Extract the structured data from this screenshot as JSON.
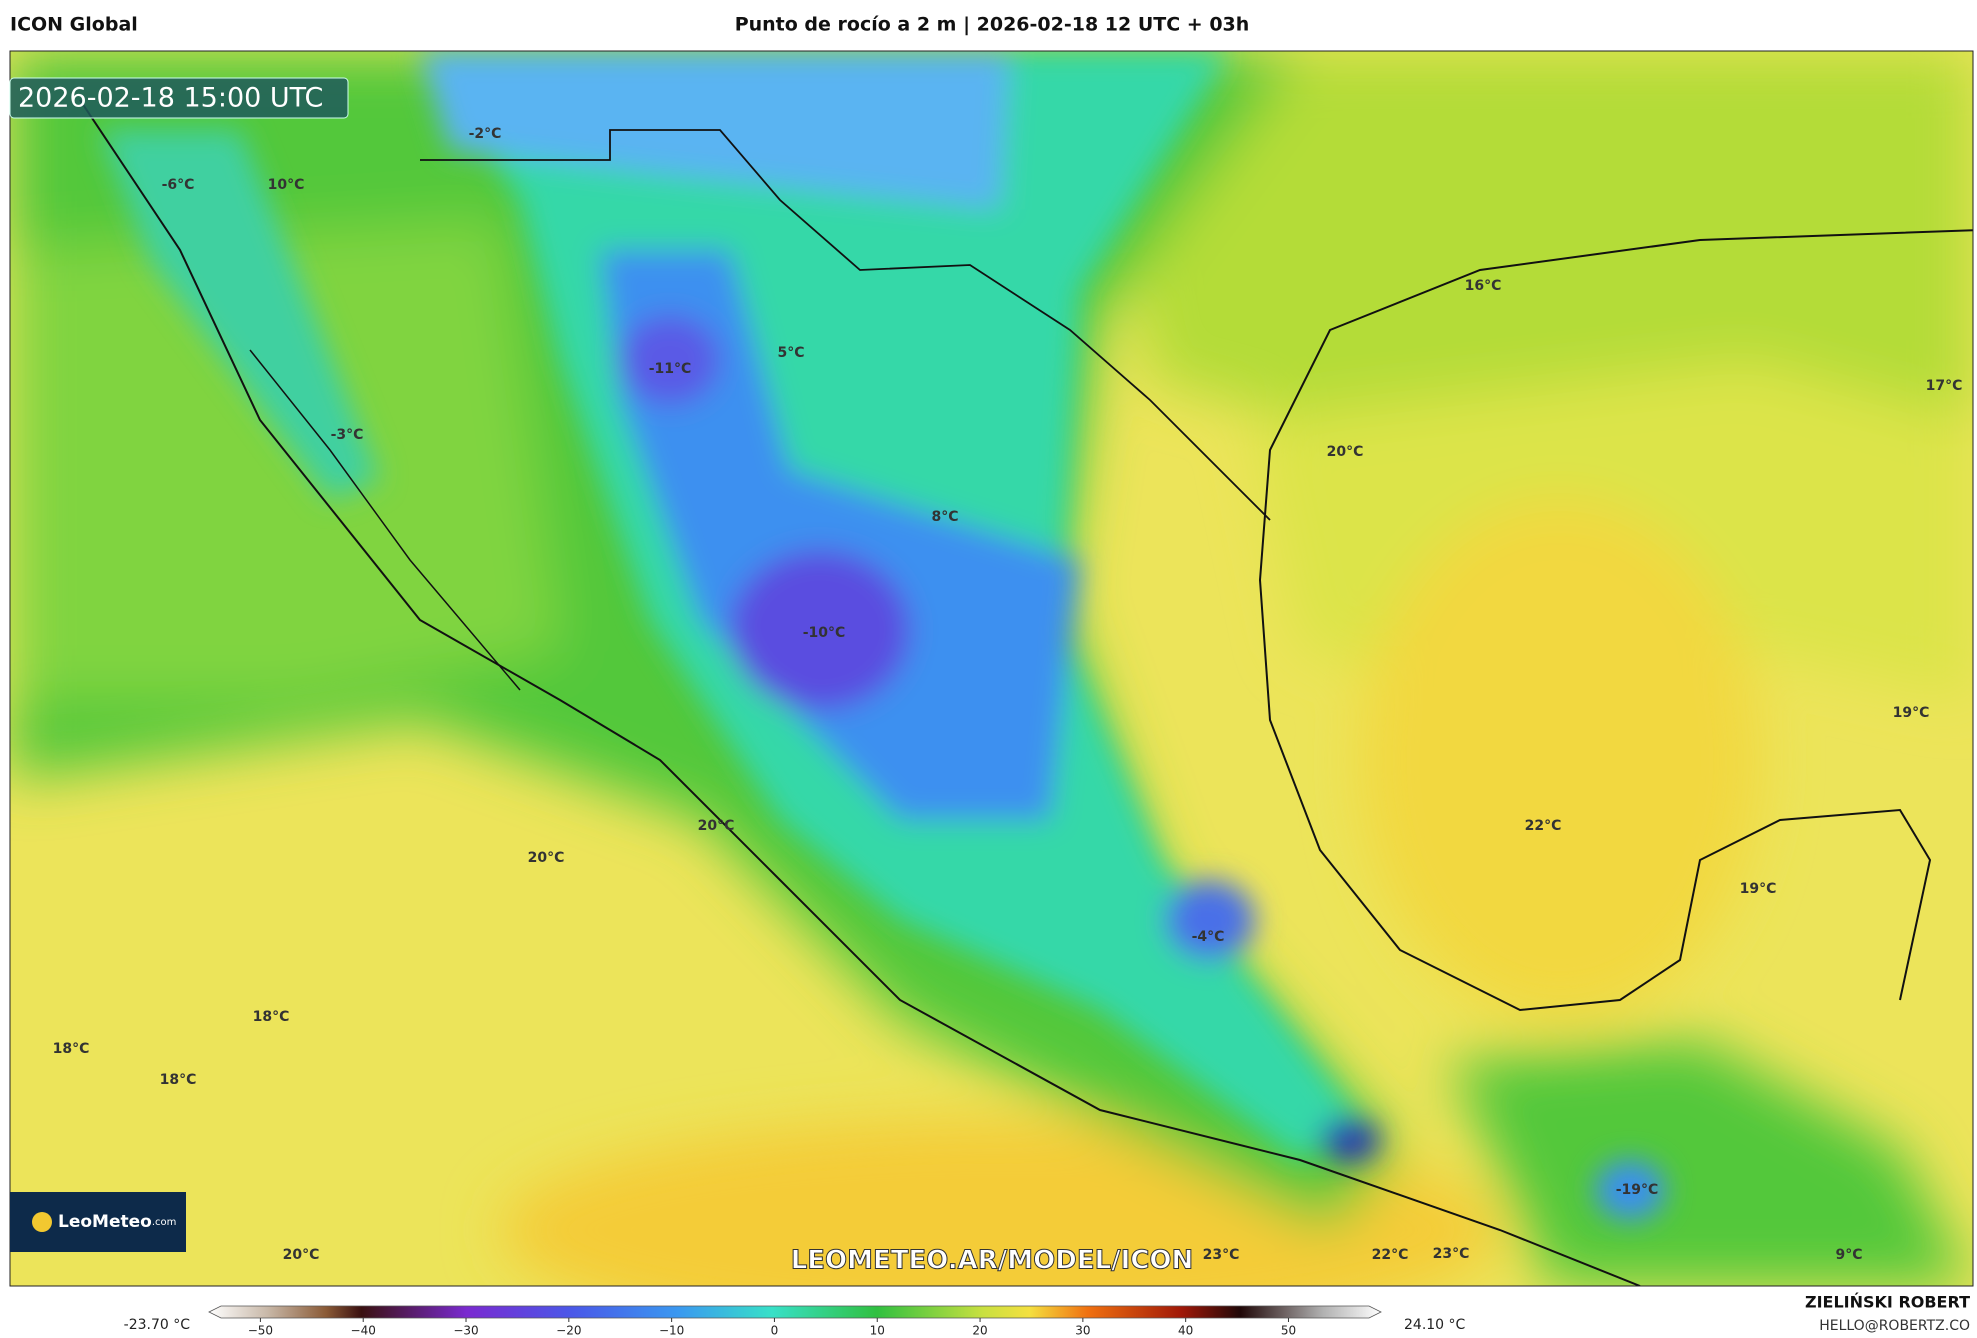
{
  "header": {
    "model": "ICON Global",
    "title": "Punto de rocío a 2 m | 2026-02-18 12 UTC + 03h"
  },
  "map": {
    "timestamp": "2026-02-18 15:00 UTC",
    "labels": [
      "-2°C",
      "-6°C",
      "10°C",
      "-11°C",
      "5°C",
      "-3°C",
      "8°C",
      "-10°C",
      "16°C",
      "17°C",
      "20°C",
      "19°C",
      "22°C",
      "19°C",
      "20°C",
      "20°C",
      "-4°C",
      "18°C",
      "18°C",
      "18°C",
      "20°C",
      "23°C",
      "22°C",
      "23°C",
      "-19°C",
      "9°C"
    ],
    "watermark": "LEOMETEO.AR/MODEL/ICON",
    "logo": {
      "name": "LeoMeteo",
      "suffix": ".com"
    }
  },
  "colorbar": {
    "min_label": "-23.70 °C",
    "max_label": "24.10 °C",
    "range": [
      -55,
      59
    ],
    "ticks": [
      {
        "value": -50,
        "label": "−50"
      },
      {
        "value": -40,
        "label": "−40"
      },
      {
        "value": -30,
        "label": "−30"
      },
      {
        "value": -20,
        "label": "−20"
      },
      {
        "value": -10,
        "label": "−10"
      },
      0,
      10,
      20,
      30,
      40,
      50
    ]
  },
  "footer": {
    "author": "ZIELIŃSKI ROBERT",
    "email": "HELLO@ROBERTZ.CO"
  }
}
